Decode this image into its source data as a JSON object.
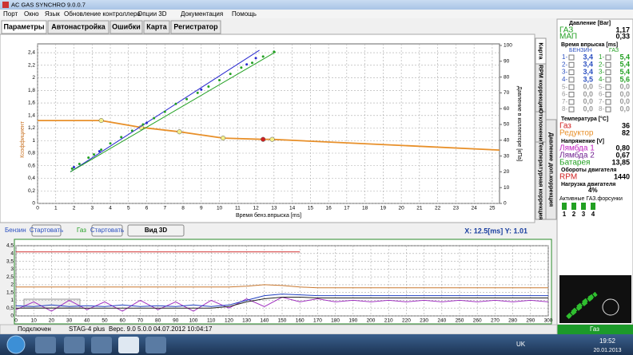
{
  "window": {
    "title": "AC GAS SYNCHRO 9.0.0.7"
  },
  "menu": [
    "Порт",
    "Окно",
    "Язык",
    "Обновление контроллера",
    "Опции 3D",
    "Документация",
    "Помощь"
  ],
  "tabs": [
    "Параметры",
    "Автонастройка",
    "Ошибки",
    "Карта",
    "Регистратор"
  ],
  "side_tabs": [
    "Карта",
    "RPM коррекция",
    "Отклонение",
    "Температурная коррекция",
    "Давление доп.коррекция"
  ],
  "map_chart": {
    "type": "scatter",
    "y_label": "Коэффициент",
    "x_label": "Время бенз.впрыска [ms]",
    "y2_label": "Давление в коллекторе [кПа]",
    "xlim": [
      0,
      25.4
    ],
    "ylim": [
      0,
      2.54
    ],
    "y2lim": [
      0,
      101
    ],
    "grid": true,
    "xticks": [
      0,
      1,
      2,
      3,
      4,
      5,
      6,
      7,
      8,
      9,
      10,
      11,
      12,
      13,
      14,
      15,
      16,
      17,
      18,
      19,
      20,
      21,
      22,
      23,
      24,
      25
    ],
    "yticks": [
      0,
      {
        "value": 0.2,
        "label": "0,2"
      },
      {
        "value": 0.4,
        "label": "0,4"
      },
      {
        "value": 0.6,
        "label": "0,6"
      },
      {
        "value": 0.8,
        "label": "0,8"
      },
      1,
      {
        "value": 1.2,
        "label": "1,2"
      },
      {
        "value": 1.4,
        "label": "1,4"
      },
      {
        "value": 1.6,
        "label": "1,6"
      },
      {
        "value": 1.8,
        "label": "1,8"
      },
      2,
      {
        "value": 2.2,
        "label": "2,2"
      },
      {
        "value": 2.4,
        "label": "2,4"
      }
    ],
    "y2ticks": [
      0,
      10,
      20,
      30,
      40,
      50,
      60,
      70,
      80,
      90,
      100
    ],
    "series": [
      {
        "type": "line",
        "color": "#e8902a",
        "x": [
          0,
          3.5,
          5.7,
          7.8,
          10.2,
          12.4,
          12.9,
          25.4
        ],
        "values": [
          1.32,
          1.32,
          1.21,
          1.14,
          1.04,
          1.02,
          1.02,
          0.85
        ]
      },
      {
        "type": "points",
        "color": "#f5f08a",
        "x": [
          3.5,
          5.7,
          7.8,
          10.2,
          12.9
        ],
        "values": [
          1.32,
          1.21,
          1.14,
          1.04,
          1.02
        ]
      },
      {
        "type": "points",
        "color": "#d02020",
        "x": [
          12.4
        ],
        "values": [
          1.02
        ]
      },
      {
        "type": "line",
        "axis": "y2",
        "color": "#2a2ad0",
        "x": [
          1.8,
          12.2
        ],
        "values": [
          20,
          97
        ]
      },
      {
        "type": "line",
        "axis": "y2",
        "color": "#22a022",
        "x": [
          1.8,
          13.1
        ],
        "values": [
          20,
          96
        ]
      },
      {
        "type": "points",
        "axis": "y2",
        "color": "#22a022",
        "x": [
          1.9,
          2.3,
          2.8,
          3.1,
          3.5,
          4.0,
          4.6,
          5.2,
          5.8,
          6.4,
          7.0,
          7.6,
          8.2,
          8.8,
          9.4,
          10.0,
          10.6,
          11.2,
          11.8,
          12.4,
          13.0
        ],
        "values": [
          22,
          25,
          29,
          31,
          34,
          38,
          42,
          46,
          50,
          54,
          58,
          63,
          66,
          70,
          74,
          78,
          82,
          86,
          89,
          93,
          96
        ]
      },
      {
        "type": "points",
        "axis": "y2",
        "color": "#2a2ad0",
        "x": [
          2.0,
          3.4,
          6.0,
          9.0,
          11.5,
          12.0
        ],
        "values": [
          23,
          33,
          51,
          72,
          88,
          92
        ]
      }
    ]
  },
  "controls": [
    "Бензин",
    "Стартовать",
    "Газ",
    "Стартовать",
    "Вид 3D"
  ],
  "cursor_readout": "X: 12.5[ms]  Y: 1.01",
  "right_panel": {
    "pressure_title": "Давление [Bar]",
    "gas_label": "ГАЗ",
    "gas_value": "1,17",
    "map_label": "МАП",
    "map_value": "0,33",
    "inj_title": "Время впрыска [ms]",
    "petrol_head": "БЕНЗИН",
    "gas_head": "ГАЗ",
    "rows": [
      [
        "1-",
        "3,4",
        "1-",
        "5,4"
      ],
      [
        "2-",
        "3,4",
        "2-",
        "5,4"
      ],
      [
        "3-",
        "3,4",
        "3-",
        "5,4"
      ],
      [
        "4-",
        "3,5",
        "4-",
        "5,6"
      ],
      [
        "5-",
        "0,0",
        "5-",
        "0,0"
      ],
      [
        "6-",
        "0,0",
        "6-",
        "0,0"
      ],
      [
        "7-",
        "0,0",
        "7-",
        "0,0"
      ],
      [
        "8-",
        "0,0",
        "8-",
        "0,0"
      ]
    ],
    "temp_title": "Температура [°C]",
    "temp_gas_label": "Газ",
    "temp_gas_value": "36",
    "reducer_label": "Редуктор",
    "reducer_value": "82",
    "volt_title": "Напряжение [V]",
    "lambda1_label": "Лямбда 1",
    "lambda1_value": "0,80",
    "lambda2_label": "Лямбда 2",
    "lambda2_value": "0,67",
    "battery_label": "Батарея",
    "battery_value": "13,85",
    "rpm_title": "Обороты двигателя",
    "rpm_label": "RPM",
    "rpm_value": "1440",
    "load_title": "Нагрузка двигателя",
    "load_value": "4%",
    "injectors_title": "Активные ГАЗ.форсунки",
    "injectors": [
      "1",
      "2",
      "3",
      "4"
    ],
    "mode": "Газ"
  },
  "trend_chart": {
    "type": "line",
    "xlim": [
      0,
      300
    ],
    "ylim": [
      0,
      4.5
    ],
    "xticks": [
      0,
      10,
      20,
      30,
      40,
      50,
      60,
      70,
      80,
      90,
      100,
      110,
      120,
      130,
      140,
      150,
      160,
      170,
      180,
      190,
      200,
      210,
      220,
      230,
      240,
      250,
      260,
      270,
      280,
      290,
      300
    ],
    "yticks": [
      0,
      {
        "value": 0.5,
        "label": "0,5"
      },
      1,
      {
        "value": 1.5,
        "label": "1,5"
      },
      2,
      {
        "value": 2.5,
        "label": "2,5"
      },
      3,
      {
        "value": 3.5,
        "label": "3,5"
      },
      4,
      {
        "value": 4.5,
        "label": "4,5"
      }
    ],
    "x": [
      0,
      10,
      20,
      30,
      40,
      50,
      60,
      70,
      80,
      90,
      100,
      110,
      120,
      130,
      140,
      150,
      160,
      170,
      180,
      190,
      200,
      210,
      220,
      230,
      240,
      250,
      260,
      270,
      280,
      290,
      300
    ],
    "series": [
      {
        "color": "#d03030",
        "values": [
          4.1,
          4.1,
          4.1,
          4.1,
          4.1,
          4.1,
          4.1,
          4.1,
          4.1,
          4.1,
          4.1,
          4.1,
          4.1,
          4.1,
          4.1,
          4.1,
          4.1,
          null,
          null,
          null,
          null,
          null,
          null,
          null,
          null,
          null,
          null,
          null,
          null,
          null,
          null
        ]
      },
      {
        "color": "#c87830",
        "values": [
          1.85,
          1.85,
          1.85,
          1.85,
          1.85,
          1.85,
          1.85,
          1.85,
          1.85,
          1.85,
          1.85,
          1.85,
          1.85,
          1.9,
          2.0,
          1.95,
          1.85,
          1.8,
          1.8,
          1.8,
          1.8,
          1.8,
          1.8,
          1.8,
          1.8,
          1.8,
          1.8,
          1.8,
          1.8,
          1.8,
          1.8
        ]
      },
      {
        "color": "#a030c0",
        "values": [
          0.4,
          0.9,
          0.3,
          1.0,
          0.4,
          0.9,
          0.3,
          1.0,
          0.4,
          0.9,
          0.3,
          1.0,
          0.5,
          1.1,
          0.6,
          1.2,
          0.9,
          1.1,
          0.9,
          1.0,
          0.9,
          1.0,
          0.9,
          1.0,
          0.9,
          1.0,
          0.9,
          1.0,
          0.9,
          1.0,
          0.9
        ]
      },
      {
        "color": "#202020",
        "values": [
          0.5,
          0.5,
          0.5,
          0.5,
          0.5,
          0.5,
          0.5,
          0.5,
          0.5,
          0.5,
          0.5,
          0.5,
          0.6,
          0.9,
          1.1,
          1.2,
          1.2,
          1.15,
          1.15,
          1.15,
          1.15,
          1.15,
          1.15,
          1.15,
          1.15,
          1.15,
          1.15,
          1.15,
          1.15,
          1.15,
          1.15
        ]
      },
      {
        "color": "#2040c0",
        "values": [
          0.65,
          0.6,
          0.7,
          0.6,
          0.65,
          0.6,
          0.7,
          0.6,
          0.65,
          0.6,
          0.7,
          0.6,
          0.7,
          1.0,
          1.3,
          1.4,
          1.35,
          1.3,
          1.3,
          1.3,
          1.3,
          1.3,
          1.3,
          1.3,
          1.3,
          1.3,
          1.3,
          1.3,
          1.3,
          1.3,
          1.3
        ]
      }
    ]
  },
  "status": [
    "Подключен",
    "STAG-4 plus",
    "Верс. 9.0  5.0.0  04.07.2012 10:04:17"
  ],
  "taskbar": {
    "lang": "UK",
    "time": "19:52",
    "date": "20.01.2013"
  }
}
